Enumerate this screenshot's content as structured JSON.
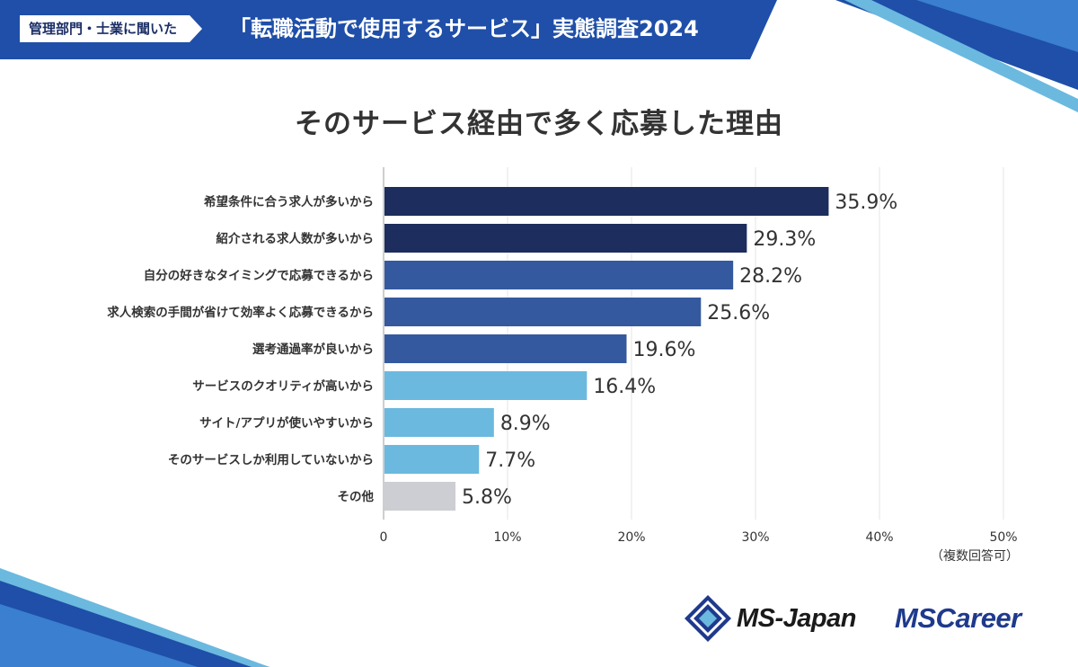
{
  "header": {
    "tag": "管理部門・士業に聞いた",
    "title": "「転職活動で使用するサービス」実態調査2024"
  },
  "colors": {
    "header_blue": "#1f4fa8",
    "navy": "#1c2d5e",
    "medium_blue": "#34599f",
    "light_blue": "#6bb9df",
    "gray": "#cdced3"
  },
  "chart_data": {
    "type": "bar",
    "orientation": "horizontal",
    "title": "そのサービス経由で多く応募した理由",
    "categories": [
      "希望条件に合う求人が多いから",
      "紹介される求人数が多いから",
      "自分の好きなタイミングで応募できるから",
      "求人検索の手間が省けて効率よく応募できるから",
      "選考通過率が良いから",
      "サービスのクオリティが高いから",
      "サイト/アプリが使いやすいから",
      "そのサービスしか利用していないから",
      "その他"
    ],
    "values": [
      35.9,
      29.3,
      28.2,
      25.6,
      19.6,
      16.4,
      8.9,
      7.7,
      5.8
    ],
    "value_labels": [
      "35.9%",
      "29.3%",
      "28.2%",
      "25.6%",
      "19.6%",
      "16.4%",
      "8.9%",
      "7.7%",
      "5.8%"
    ],
    "bar_colors": [
      "#1c2d5e",
      "#1c2d5e",
      "#34599f",
      "#34599f",
      "#34599f",
      "#6bb9df",
      "#6bb9df",
      "#6bb9df",
      "#cdced3"
    ],
    "xlim": [
      0,
      50
    ],
    "xticks": [
      0,
      10,
      20,
      30,
      40,
      50
    ],
    "xtick_labels": [
      "0",
      "10%",
      "20%",
      "30%",
      "40%",
      "50%"
    ],
    "grid": true,
    "note": "（複数回答可）"
  },
  "logos": {
    "msjapan": "MS-Japan",
    "mscareer": "MSCareer"
  }
}
